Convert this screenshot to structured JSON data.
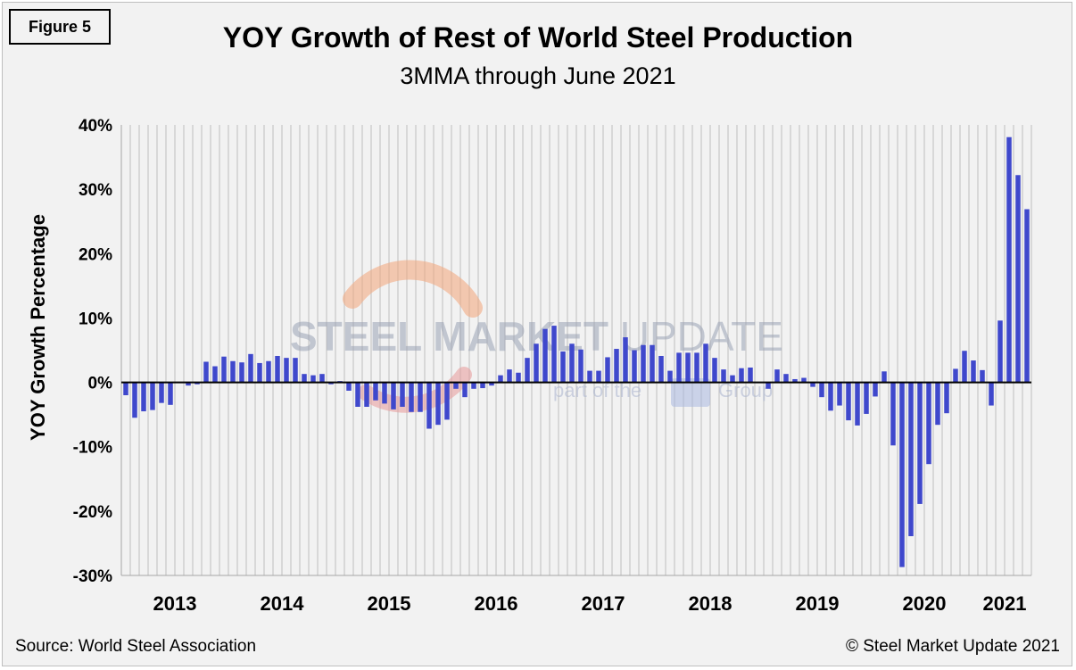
{
  "figure_label": "Figure 5",
  "source_note": "Source: World Steel Association",
  "copyright_note": "© Steel Market Update 2021",
  "watermark": {
    "line1_bold": "STEEL MARKET",
    "line1_light": " UPDATE",
    "line2a": "part of the",
    "line2b": "Group"
  },
  "colors": {
    "bar": "#3f48cc",
    "background": "#f2f2f2",
    "gridline": "#bfbfbf",
    "axis": "#000000"
  },
  "chart_data": {
    "type": "bar",
    "title": "YOY Growth of Rest of World Steel Production",
    "subtitle": "3MMA through June 2021",
    "ylabel": "YOY Growth Percentage",
    "xlabel": "",
    "ylim": [
      -30,
      40
    ],
    "yticks": [
      40,
      30,
      20,
      10,
      0,
      -10,
      -20,
      -30
    ],
    "ytick_labels": [
      "40%",
      "30%",
      "20%",
      "10%",
      "0%",
      "-10%",
      "-20%",
      "-30%"
    ],
    "year_labels": [
      "2013",
      "2014",
      "2015",
      "2016",
      "2017",
      "2018",
      "2019",
      "2020",
      "2021"
    ],
    "months_per_year": 12,
    "series": [
      {
        "name": "YOY Growth",
        "values": [
          -2.0,
          -5.5,
          -4.5,
          -4.3,
          -3.2,
          -3.5,
          0.0,
          -0.5,
          -0.3,
          3.2,
          2.5,
          4.0,
          3.3,
          3.1,
          4.4,
          3.0,
          3.3,
          4.1,
          3.8,
          3.8,
          1.3,
          1.1,
          1.3,
          -0.3,
          0.2,
          -1.3,
          -3.8,
          -3.8,
          -2.8,
          -3.3,
          -4.2,
          -3.8,
          -4.6,
          -4.6,
          -7.2,
          -6.6,
          -5.8,
          -1.0,
          -2.3,
          -1.0,
          -0.9,
          -0.5,
          1.1,
          2.0,
          1.5,
          3.8,
          6.0,
          8.3,
          8.8,
          4.8,
          6.0,
          5.1,
          1.8,
          1.8,
          3.9,
          5.2,
          7.0,
          5.0,
          5.8,
          5.8,
          4.1,
          1.8,
          4.6,
          4.6,
          4.6,
          6.0,
          3.8,
          2.0,
          1.1,
          2.2,
          2.3,
          0.0,
          -1.0,
          2.0,
          1.3,
          0.5,
          0.7,
          -0.7,
          -2.3,
          -4.4,
          -3.6,
          -5.9,
          -6.7,
          -4.9,
          -2.2,
          1.7,
          -9.8,
          -28.7,
          -23.9,
          -18.9,
          -12.7,
          -6.6,
          -4.8,
          2.1,
          4.9,
          3.4,
          1.9,
          -3.6,
          9.6,
          38.1,
          32.2,
          26.9
        ]
      }
    ],
    "grid": true,
    "legend": "none"
  }
}
